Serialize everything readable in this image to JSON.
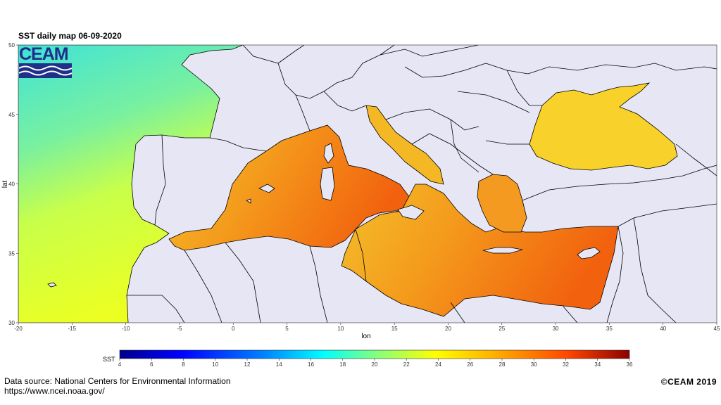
{
  "title": "SST daily map 06-09-2020",
  "logo": {
    "text": "CEAM",
    "brand_color": "#1f2f8a"
  },
  "axes": {
    "xlabel": "lon",
    "ylabel": "lat",
    "xticks": [
      "-20",
      "-15",
      "-10",
      "-5",
      "0",
      "5",
      "10",
      "15",
      "20",
      "25",
      "30",
      "35",
      "40",
      "45"
    ],
    "yticks": [
      "30",
      "35",
      "40",
      "45",
      "50"
    ],
    "xlim": [
      -20,
      45
    ],
    "ylim": [
      30,
      50
    ]
  },
  "colorbar": {
    "label": "SST",
    "ticks": [
      "4",
      "6",
      "8",
      "10",
      "12",
      "14",
      "16",
      "18",
      "20",
      "22",
      "24",
      "26",
      "28",
      "30",
      "32",
      "34",
      "36"
    ],
    "range": [
      4,
      36
    ],
    "colors": [
      "#00008b",
      "#0000ff",
      "#0080ff",
      "#00ffff",
      "#80ff80",
      "#ffff00",
      "#ffa500",
      "#ff4500",
      "#8b0000"
    ]
  },
  "map_colors": {
    "land": "#e6e6f5",
    "atlantic_north": "#4fe8c6",
    "atlantic_south": "#e8ff2a",
    "med_west": "#f5b21e",
    "med_east": "#f46a10",
    "black_sea": "#f8d427",
    "coast": "#000000"
  },
  "footer": {
    "source_line1": "Data source: National Centers for Environmental Information",
    "source_line2": "https://www.ncei.noaa.gov/",
    "copyright": "©CEAM 2019"
  }
}
